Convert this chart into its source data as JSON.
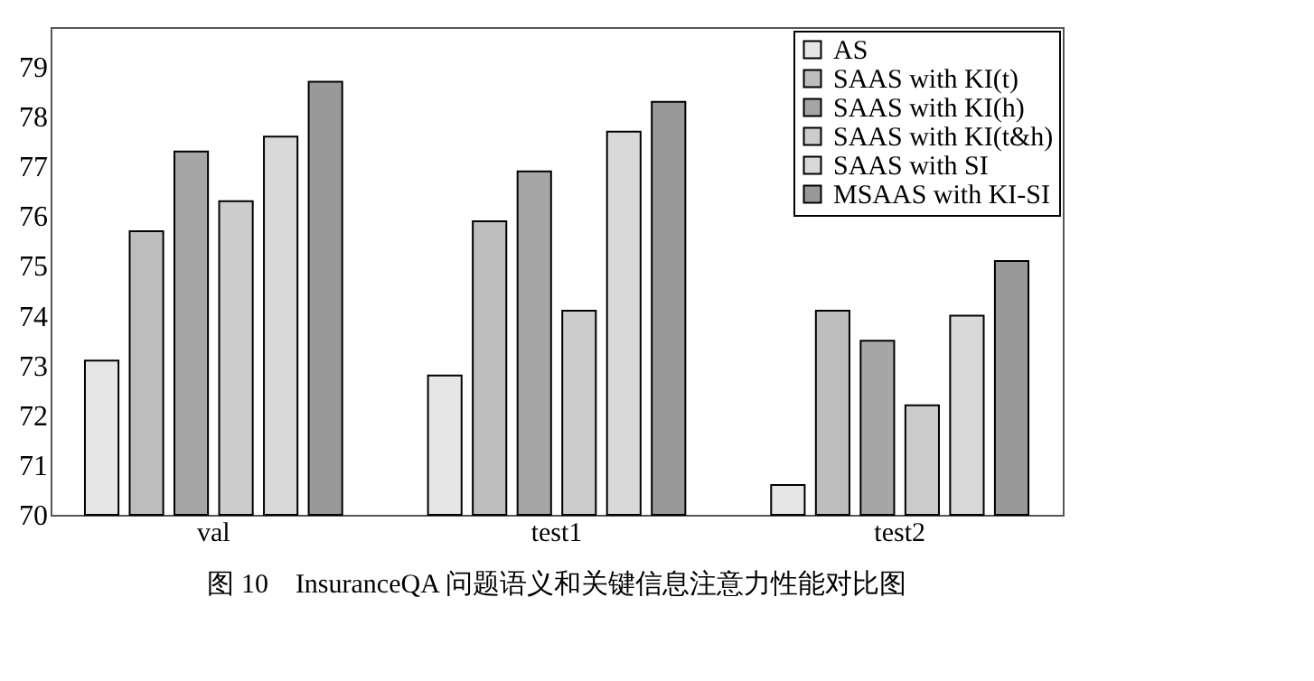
{
  "chart_data": {
    "type": "bar",
    "title": "图 10　InsuranceQA 问题语义和关键信息注意力性能对比图",
    "categories": [
      "val",
      "test1",
      "test2"
    ],
    "series": [
      {
        "name": "AS",
        "color": "#e6e6e6",
        "values": [
          73.1,
          72.8,
          70.6
        ]
      },
      {
        "name": "SAAS with KI(t)",
        "color": "#bdbdbd",
        "values": [
          75.7,
          75.9,
          74.1
        ]
      },
      {
        "name": "SAAS with KI(h)",
        "color": "#a6a6a6",
        "values": [
          77.3,
          76.9,
          73.5
        ]
      },
      {
        "name": "SAAS with KI(t&h)",
        "color": "#cccccc",
        "values": [
          76.3,
          74.1,
          72.2
        ]
      },
      {
        "name": "SAAS with SI",
        "color": "#d9d9d9",
        "values": [
          77.6,
          77.7,
          74.0
        ]
      },
      {
        "name": "MSAAS with KI-SI",
        "color": "#999999",
        "values": [
          78.7,
          78.3,
          75.1
        ]
      }
    ],
    "ylim": [
      70,
      79.8
    ],
    "yticks": [
      70,
      71,
      72,
      73,
      74,
      75,
      76,
      77,
      78,
      79
    ],
    "legend": "top right",
    "grid": false
  }
}
